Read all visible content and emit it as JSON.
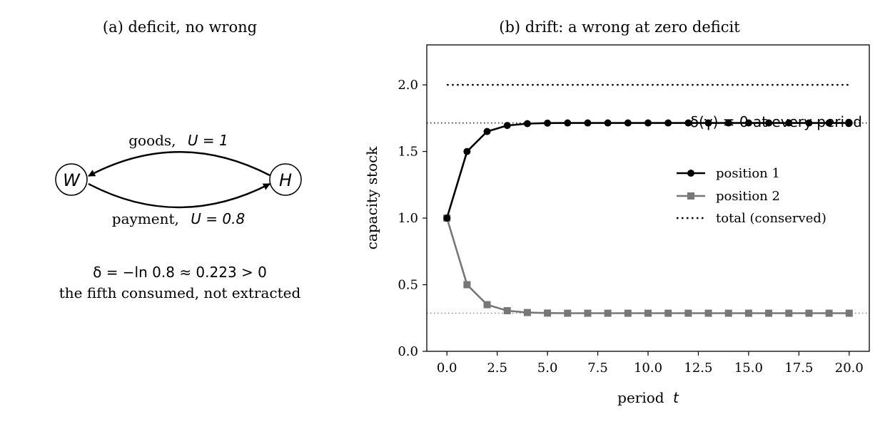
{
  "panel_a": {
    "title": "(a) deficit, no wrong",
    "node_w": "W",
    "node_h": "H",
    "arrow_top_text": "goods,",
    "arrow_top_math": "U = 1",
    "arrow_bottom_text": "payment,",
    "arrow_bottom_math": "U = 0.8",
    "caption_line1": "δ = −ln 0.8 ≈ 0.223 > 0",
    "caption_line2": "the fifth consumed, not extracted"
  },
  "chart_data": {
    "type": "line",
    "title": "(b) drift: a wrong at zero deficit",
    "xlabel_text": "period",
    "xlabel_math": "t",
    "ylabel": "capacity stock",
    "xlim": [
      -1,
      21
    ],
    "ylim": [
      0,
      2.3
    ],
    "xticks": [
      0,
      2.5,
      5,
      7.5,
      10,
      12.5,
      15,
      17.5,
      20
    ],
    "xtick_labels": [
      "0.0",
      "2.5",
      "5.0",
      "7.5",
      "10.0",
      "12.5",
      "15.0",
      "17.5",
      "20.0"
    ],
    "yticks": [
      0,
      0.5,
      1,
      1.5,
      2
    ],
    "ytick_labels": [
      "0.0",
      "0.5",
      "1.0",
      "1.5",
      "2.0"
    ],
    "x": [
      0,
      1,
      2,
      3,
      4,
      5,
      6,
      7,
      8,
      9,
      10,
      11,
      12,
      13,
      14,
      15,
      16,
      17,
      18,
      19,
      20
    ],
    "series": [
      {
        "name": "position 1",
        "color": "#000000",
        "marker": "circle",
        "values": [
          1.0,
          1.5,
          1.65,
          1.695,
          1.709,
          1.713,
          1.714,
          1.714,
          1.714,
          1.714,
          1.714,
          1.714,
          1.714,
          1.714,
          1.714,
          1.714,
          1.714,
          1.714,
          1.714,
          1.714,
          1.714
        ]
      },
      {
        "name": "position 2",
        "color": "#777777",
        "marker": "square",
        "values": [
          1.0,
          0.5,
          0.35,
          0.305,
          0.291,
          0.287,
          0.286,
          0.286,
          0.286,
          0.286,
          0.286,
          0.286,
          0.286,
          0.286,
          0.286,
          0.286,
          0.286,
          0.286,
          0.286,
          0.286,
          0.286
        ]
      }
    ],
    "total": {
      "name": "total (conserved)",
      "value": 2.0,
      "x_range": [
        0,
        20
      ],
      "style": "dotted"
    },
    "reference_lines": [
      {
        "value": 1.714,
        "color": "#000000",
        "style": "dotted"
      },
      {
        "value": 0.286,
        "color": "#777777",
        "style": "dotted"
      }
    ],
    "annotation": "δ(γ) ≡ 0 at every period",
    "legend_position": "center-right",
    "grid": false
  }
}
